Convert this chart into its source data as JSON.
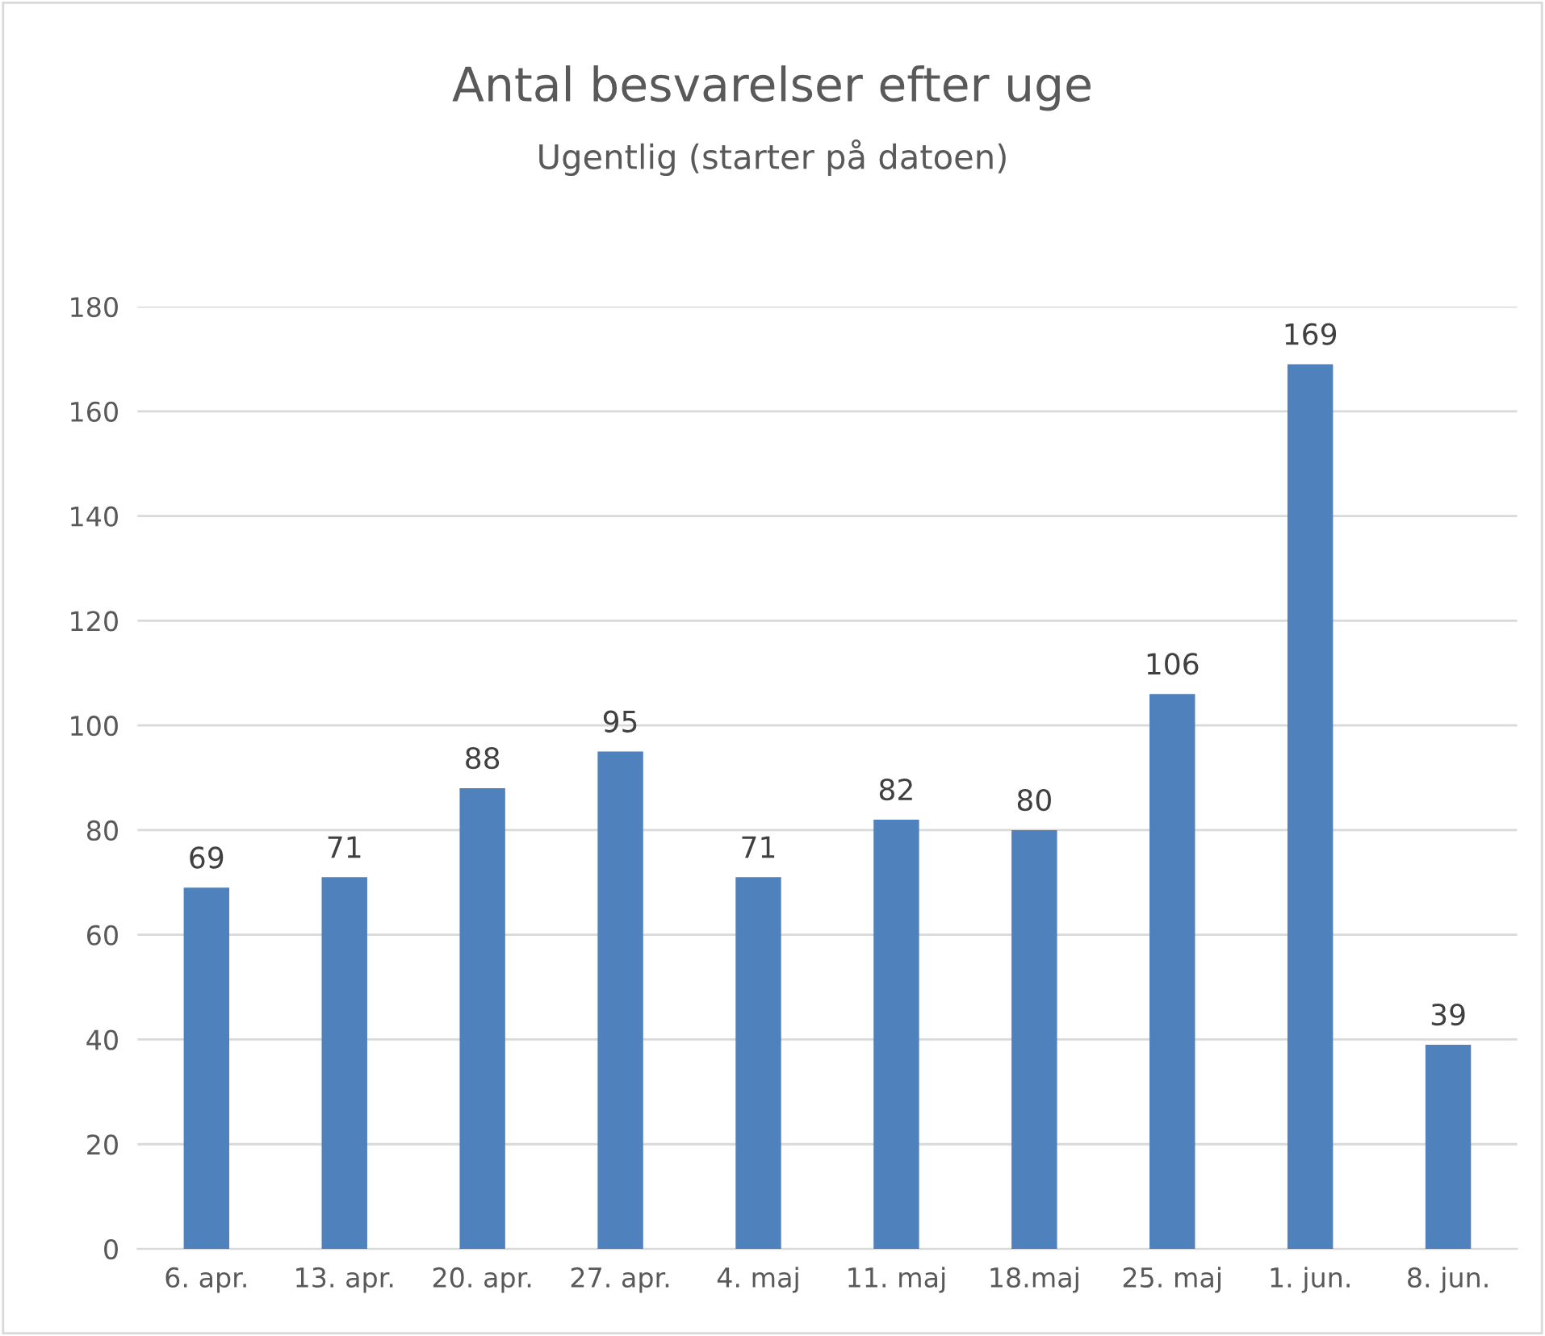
{
  "chart_data": {
    "type": "bar",
    "title": "Antal besvarelser efter uge",
    "subtitle": "Ugentlig (starter på datoen)",
    "categories": [
      "6. apr.",
      "13. apr.",
      "20. apr.",
      "27. apr.",
      "4. maj",
      "11. maj",
      "18.maj",
      "25. maj",
      "1. jun.",
      "8. jun."
    ],
    "values": [
      69,
      71,
      88,
      95,
      71,
      82,
      80,
      106,
      169,
      39
    ],
    "color": "#4f81bd",
    "ylim": [
      0,
      180
    ],
    "yticks": [
      0,
      20,
      40,
      60,
      80,
      100,
      120,
      140,
      160,
      180
    ],
    "grid": "y",
    "data_labels": true,
    "legend": false
  }
}
